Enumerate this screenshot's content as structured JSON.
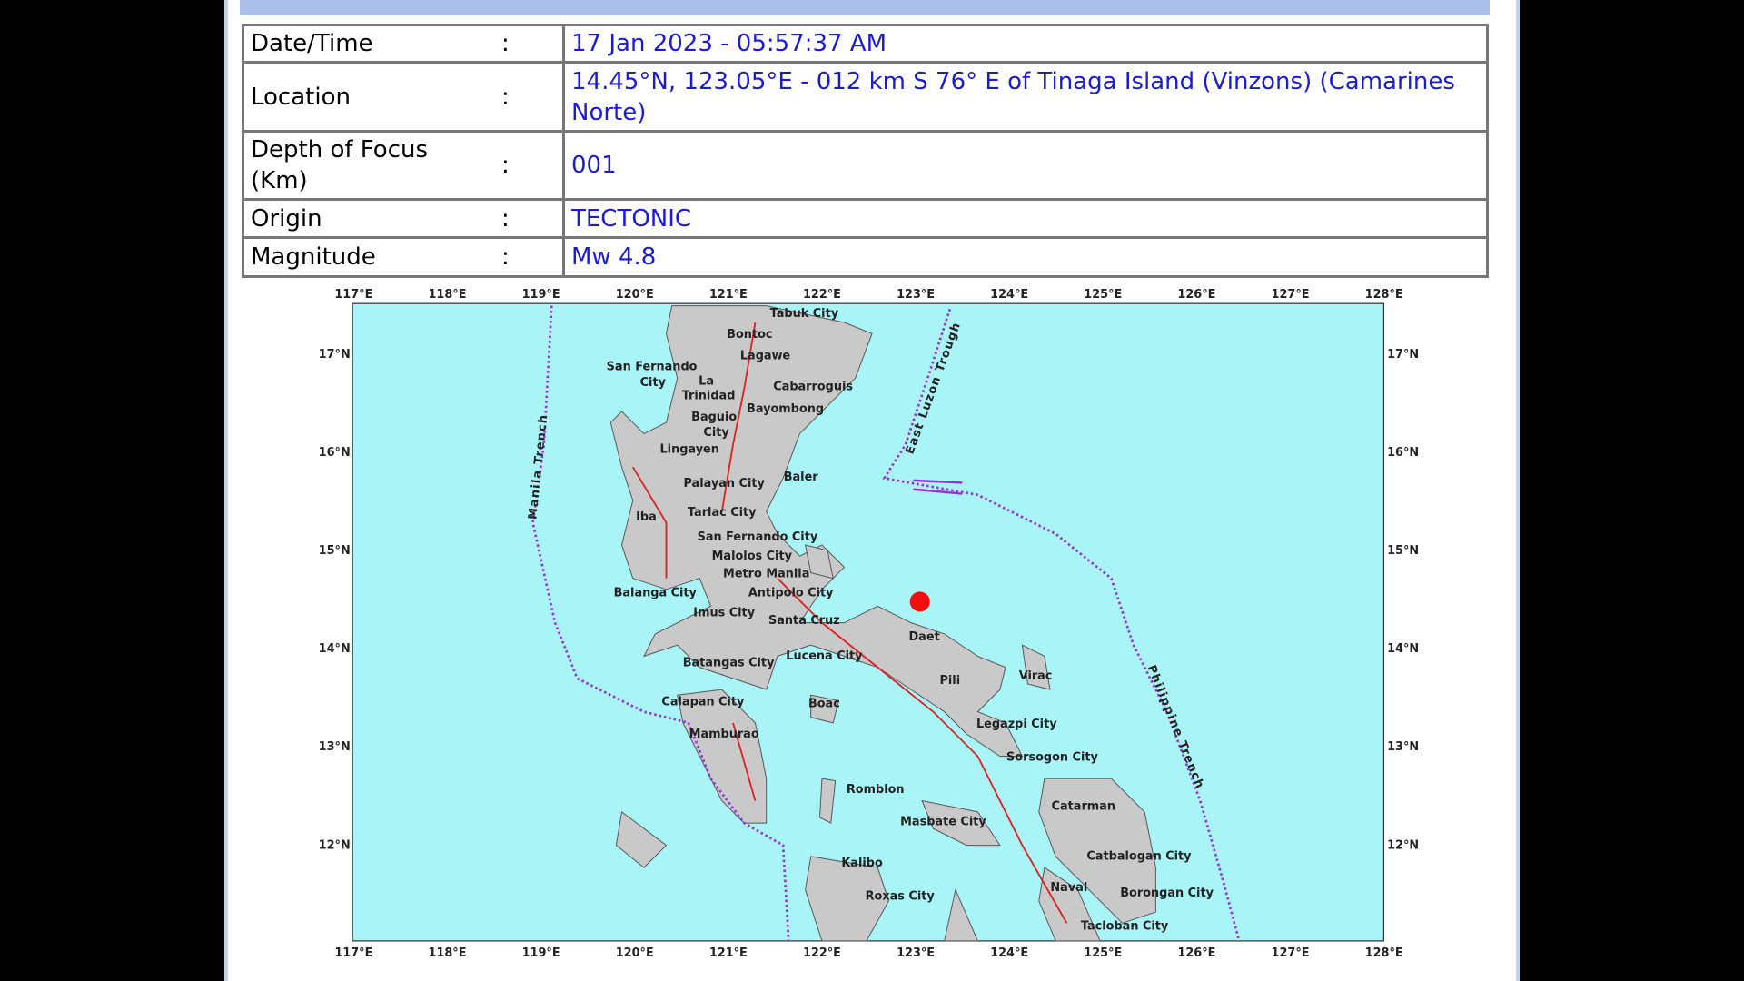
{
  "table": {
    "rows": [
      [
        "Date/Time",
        ":",
        "17 Jan 2023 - 05:57:37 AM"
      ],
      [
        "Location",
        ":",
        "14.45°N, 123.05°E - 012 km S 76° E of Tinaga Island (Vinzons) (Camarines Norte)"
      ],
      [
        "Depth of Focus (Km)",
        ":",
        "001"
      ],
      [
        "Origin",
        ":",
        "TECTONIC"
      ],
      [
        "Magnitude",
        ":",
        "Mw 4.8"
      ]
    ]
  },
  "map": {
    "lon_labels": [
      "117°E",
      "118°E",
      "119°E",
      "120°E",
      "121°E",
      "122°E",
      "123°E",
      "124°E",
      "125°E",
      "126°E",
      "127°E",
      "128°E"
    ],
    "lat_labels": [
      "17°N",
      "16°N",
      "15°N",
      "14°N",
      "13°N",
      "12°N"
    ],
    "places": [
      "Tabuk City",
      "Bontoc",
      "Lagawe",
      "San Fernando",
      "City",
      "La",
      "Trinidad",
      "Cabarroguis",
      "Baguio",
      "City",
      "Bayombong",
      "Lingayen",
      "Baler",
      "Palayan City",
      "Iba",
      "Tarlac City",
      "San Fernando City",
      "Malolos City",
      "Metro Manila",
      "Balanga City",
      "Antipolo City",
      "Imus City",
      "Santa Cruz",
      "Daet",
      "Batangas City",
      "Lucena City",
      "Pili",
      "Virac",
      "Calapan City",
      "Boac",
      "Legazpi City",
      "Mamburao",
      "Sorsogon City",
      "Romblon",
      "Catarman",
      "Masbate City",
      "Catbalogan City",
      "Kalibo",
      "Naval",
      "Borongan City",
      "Roxas City",
      "Tacloban City"
    ],
    "features": [
      "Manila Trench",
      "East Luzon Trough",
      "Philippine Trench"
    ]
  }
}
